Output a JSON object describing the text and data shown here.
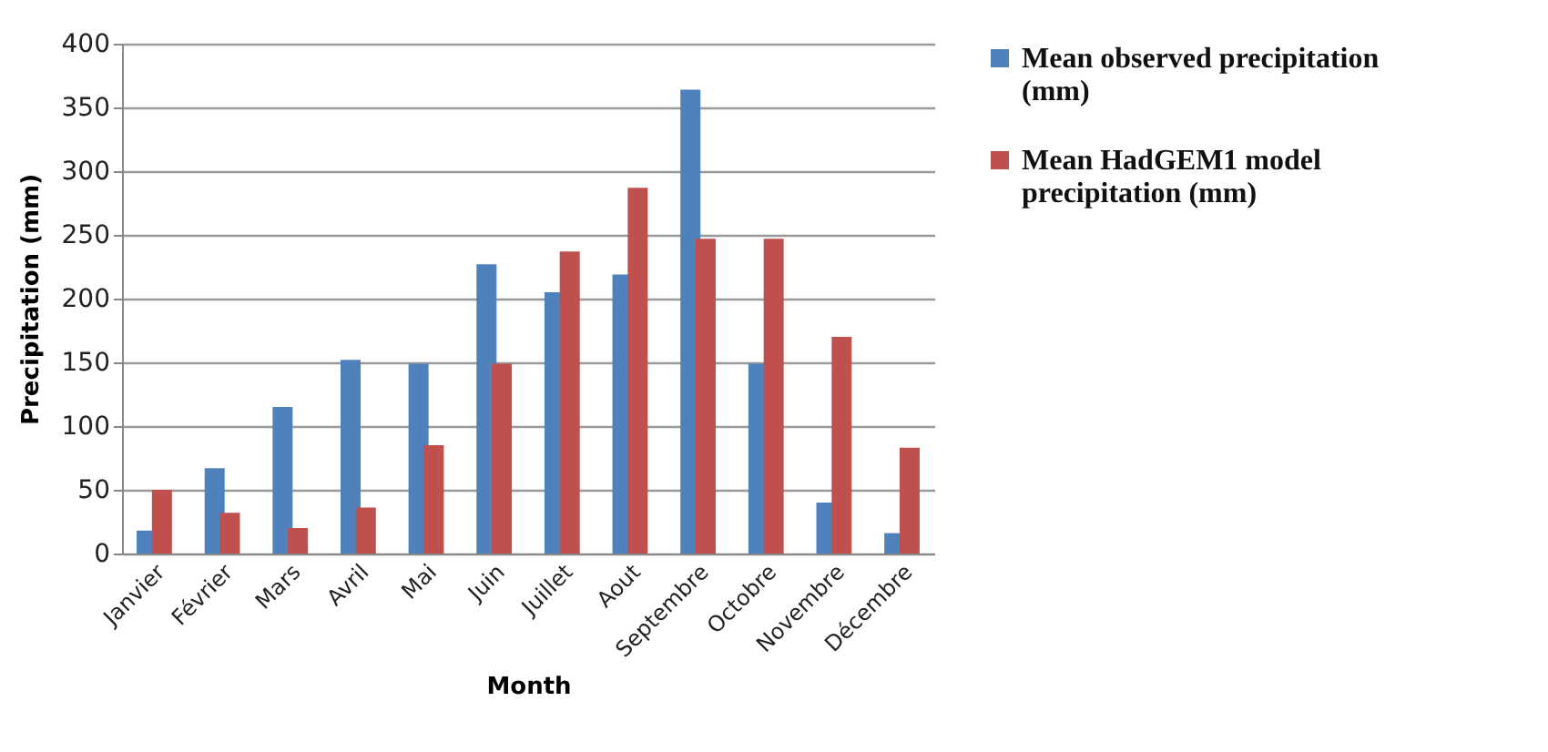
{
  "chart_data": {
    "type": "bar",
    "xlabel": "Month",
    "ylabel": "Precipitation (mm)",
    "categories": [
      "Janvier",
      "Février",
      "Mars",
      "Avril",
      "Mai",
      "Juin",
      "Juillet",
      "Aout",
      "Septembre",
      "Octobre",
      "Novembre",
      "Décembre"
    ],
    "series": [
      {
        "name": "Mean observed precipitation (mm)",
        "color": "#4f81bd",
        "values": [
          18,
          67,
          115,
          152,
          149,
          227,
          205,
          219,
          364,
          149,
          40,
          16
        ]
      },
      {
        "name": "Mean HadGEM1 model precipitation (mm)",
        "color": "#c0504d",
        "values": [
          50,
          32,
          20,
          36,
          85,
          149,
          237,
          287,
          247,
          247,
          170,
          83
        ]
      }
    ],
    "ylim": [
      0,
      400
    ],
    "yticks": [
      0,
      50,
      100,
      150,
      200,
      250,
      300,
      350,
      400
    ],
    "grid": "y",
    "legend": "right"
  }
}
